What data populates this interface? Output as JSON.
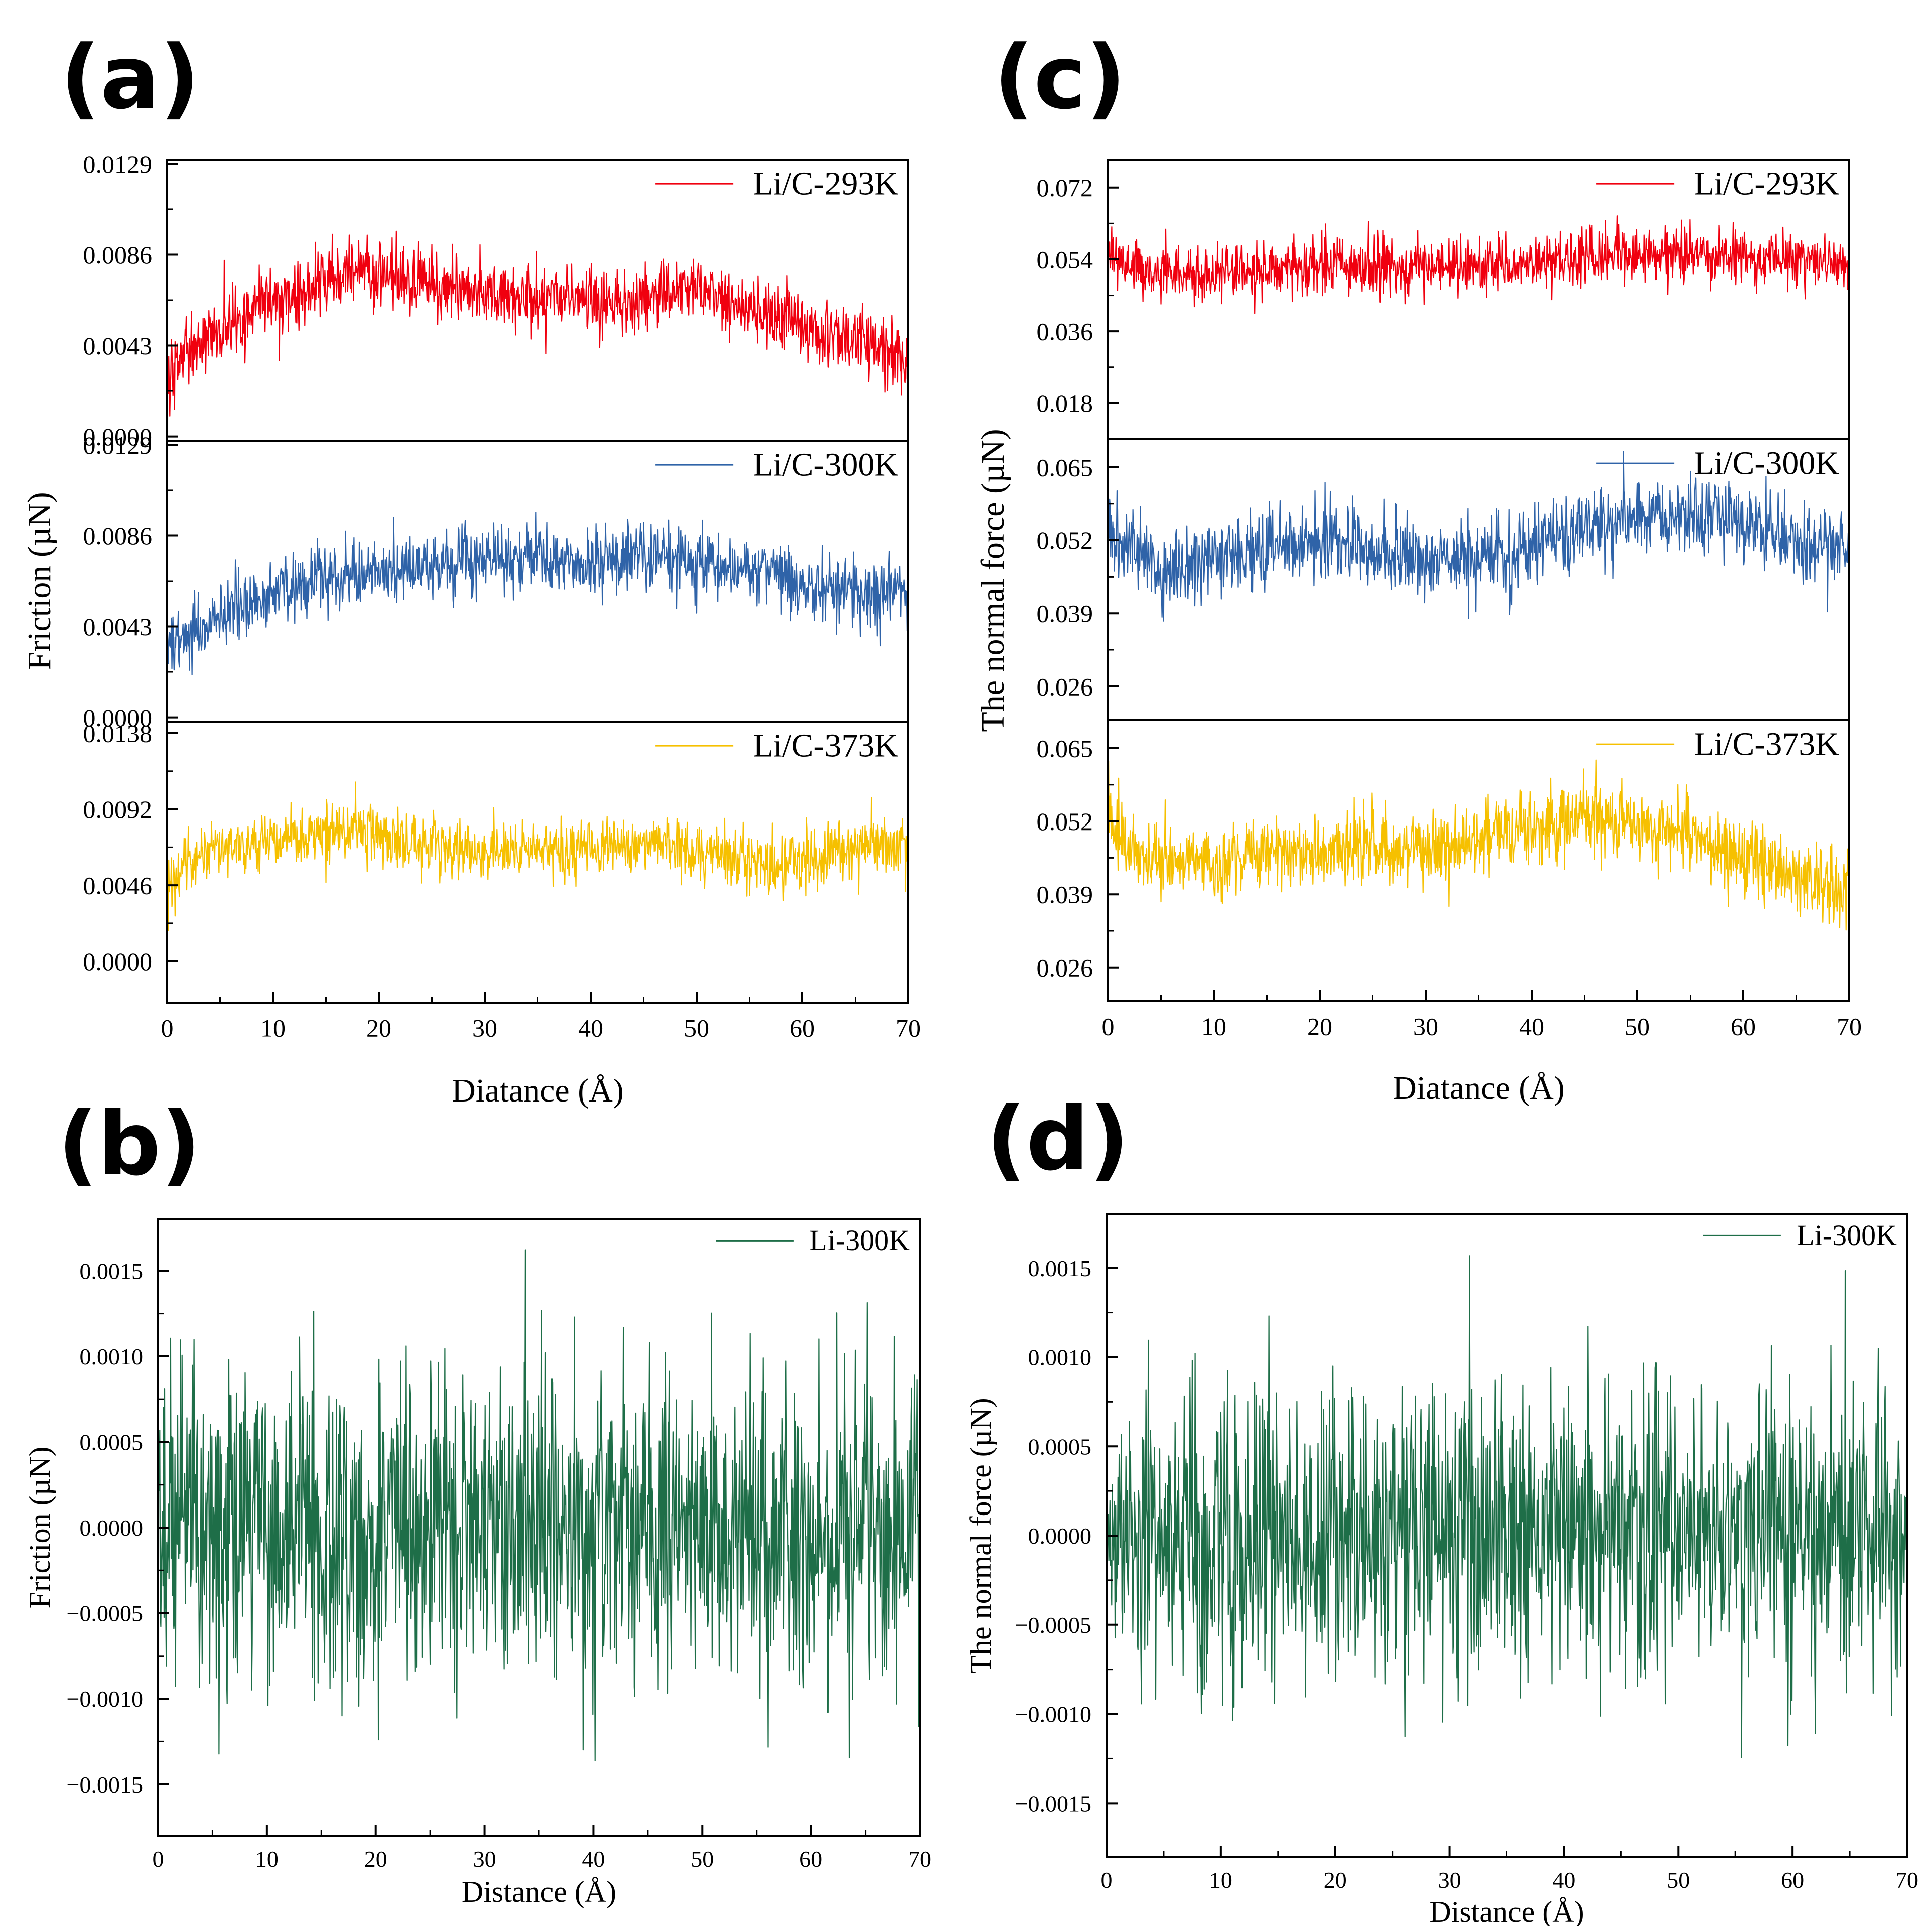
{
  "figure": {
    "panels": {
      "a": "(a)",
      "b": "(b)",
      "c": "(c)",
      "d": "(d)"
    }
  },
  "colors": {
    "red": "#f0000f",
    "blue": "#2f63a8",
    "yellow": "#f6c000",
    "green": "#1e6e48",
    "axis": "#000000"
  },
  "chart_data": [
    {
      "id": "a",
      "type": "line",
      "title": "",
      "ylabel": "Friction (µN)",
      "xlabel": "Diatance (Å)",
      "xlim": [
        0,
        70
      ],
      "xticks": [
        "0",
        "10",
        "20",
        "30",
        "40",
        "50",
        "60",
        "70"
      ],
      "subplots": [
        {
          "legend": "Li/C-293K",
          "color": "#f0000f",
          "ylim": [
            -0.0002,
            0.0131
          ],
          "yticks": [
            "0.0129",
            "0.0086",
            "0.0043",
            "0.0000"
          ],
          "ytick_values": [
            0.0129,
            0.0086,
            0.0043,
            0.0
          ],
          "x": [
            0,
            2,
            5,
            10,
            15,
            18,
            20,
            22,
            25,
            30,
            35,
            40,
            45,
            48,
            50,
            55,
            60,
            65,
            70
          ],
          "values": [
            0.0025,
            0.004,
            0.0052,
            0.0065,
            0.0072,
            0.008,
            0.0078,
            0.0076,
            0.0072,
            0.0068,
            0.0066,
            0.0063,
            0.0065,
            0.007,
            0.0072,
            0.006,
            0.0052,
            0.0045,
            0.0035
          ],
          "noise": 0.0008
        },
        {
          "legend": "Li/C-300K",
          "color": "#2f63a8",
          "ylim": [
            -0.0002,
            0.0131
          ],
          "yticks": [
            "0.0129",
            "0.0086",
            "0.0043",
            "0.0000"
          ],
          "ytick_values": [
            0.0129,
            0.0086,
            0.0043,
            0.0
          ],
          "x": [
            0,
            2,
            5,
            10,
            15,
            20,
            25,
            30,
            35,
            40,
            45,
            50,
            55,
            60,
            65,
            70
          ],
          "values": [
            0.003,
            0.004,
            0.0048,
            0.006,
            0.0066,
            0.0068,
            0.0071,
            0.0076,
            0.0075,
            0.0074,
            0.0077,
            0.0074,
            0.007,
            0.0063,
            0.006,
            0.0058
          ],
          "noise": 0.0008
        },
        {
          "legend": "Li/C-373K",
          "color": "#f6c000",
          "ylim": [
            -0.0025,
            0.0145
          ],
          "yticks": [
            "0.0138",
            "0.0092",
            "0.0046",
            "0.0000"
          ],
          "ytick_values": [
            0.0138,
            0.0092,
            0.0046,
            0.0
          ],
          "x": [
            0,
            2,
            5,
            10,
            15,
            18,
            20,
            25,
            30,
            35,
            40,
            45,
            50,
            55,
            60,
            65,
            70
          ],
          "values": [
            0.0045,
            0.006,
            0.0068,
            0.0072,
            0.0078,
            0.0082,
            0.0075,
            0.0068,
            0.0066,
            0.0067,
            0.007,
            0.007,
            0.0068,
            0.006,
            0.0058,
            0.0068,
            0.0072
          ],
          "noise": 0.0009
        }
      ]
    },
    {
      "id": "b",
      "type": "line",
      "title": "",
      "ylabel": "Friction (µN)",
      "xlabel": "Distance (Å)",
      "xlim": [
        0,
        70
      ],
      "xticks": [
        "0",
        "10",
        "20",
        "30",
        "40",
        "50",
        "60",
        "70"
      ],
      "legend": "Li-300K",
      "color": "#1e6e48",
      "ylim": [
        -0.0018,
        0.0018
      ],
      "yticks": [
        "0.0015",
        "0.0010",
        "0.0005",
        "0.0000",
        "−0.0005",
        "−0.0010",
        "−0.0015"
      ],
      "ytick_values": [
        0.0015,
        0.001,
        0.0005,
        0.0,
        -0.0005,
        -0.001,
        -0.0015
      ],
      "x": [
        0,
        70
      ],
      "values": [
        0.0,
        0.0
      ],
      "noise": 0.00045
    },
    {
      "id": "c",
      "type": "line",
      "title": "",
      "ylabel": "The normal force (µN)",
      "xlabel": "Diatance (Å)",
      "xlim": [
        0,
        70
      ],
      "xticks": [
        "0",
        "10",
        "20",
        "30",
        "40",
        "50",
        "60",
        "70"
      ],
      "subplots": [
        {
          "legend": "Li/C-293K",
          "color": "#f0000f",
          "ylim": [
            0.009,
            0.079
          ],
          "yticks": [
            "0.072",
            "0.054",
            "0.036",
            "0.018"
          ],
          "ytick_values": [
            0.072,
            0.054,
            0.036,
            0.018
          ],
          "x": [
            0,
            1,
            5,
            10,
            20,
            30,
            40,
            50,
            55,
            60,
            65,
            70
          ],
          "values": [
            0.056,
            0.053,
            0.05,
            0.05,
            0.052,
            0.052,
            0.053,
            0.055,
            0.055,
            0.055,
            0.054,
            0.053
          ],
          "noise": 0.0035
        },
        {
          "legend": "Li/C-300K",
          "color": "#2f63a8",
          "ylim": [
            0.02,
            0.07
          ],
          "yticks": [
            "0.065",
            "0.052",
            "0.039",
            "0.026"
          ],
          "ytick_values": [
            0.065,
            0.052,
            0.039,
            0.026
          ],
          "x": [
            0,
            2,
            5,
            10,
            15,
            20,
            25,
            30,
            35,
            40,
            45,
            50,
            55,
            60,
            65,
            70
          ],
          "values": [
            0.053,
            0.05,
            0.047,
            0.048,
            0.051,
            0.052,
            0.05,
            0.048,
            0.049,
            0.051,
            0.054,
            0.056,
            0.057,
            0.055,
            0.052,
            0.051
          ],
          "noise": 0.0035
        },
        {
          "legend": "Li/C-373K",
          "color": "#f6c000",
          "ylim": [
            0.02,
            0.07
          ],
          "yticks": [
            "0.065",
            "0.052",
            "0.039",
            "0.026"
          ],
          "ytick_values": [
            0.065,
            0.052,
            0.039,
            0.026
          ],
          "x": [
            0,
            1,
            5,
            10,
            20,
            30,
            40,
            45,
            50,
            55,
            60,
            65,
            70
          ],
          "values": [
            0.055,
            0.049,
            0.045,
            0.045,
            0.047,
            0.047,
            0.051,
            0.053,
            0.051,
            0.049,
            0.046,
            0.042,
            0.04
          ],
          "noise": 0.0033
        }
      ]
    },
    {
      "id": "d",
      "type": "line",
      "title": "",
      "ylabel": "The normal force (µN)",
      "xlabel": "Distance (Å)",
      "xlim": [
        0,
        70
      ],
      "xticks": [
        "0",
        "10",
        "20",
        "30",
        "40",
        "50",
        "60",
        "70"
      ],
      "legend": "Li-300K",
      "color": "#1e6e48",
      "ylim": [
        -0.0018,
        0.0018
      ],
      "yticks": [
        "0.0015",
        "0.0010",
        "0.0005",
        "0.0000",
        "−0.0005",
        "−0.0010",
        "−0.0015"
      ],
      "ytick_values": [
        0.0015,
        0.001,
        0.0005,
        0.0,
        -0.0005,
        -0.001,
        -0.0015
      ],
      "x": [
        0,
        70
      ],
      "values": [
        0.0,
        0.0
      ],
      "noise": 0.00042
    }
  ]
}
